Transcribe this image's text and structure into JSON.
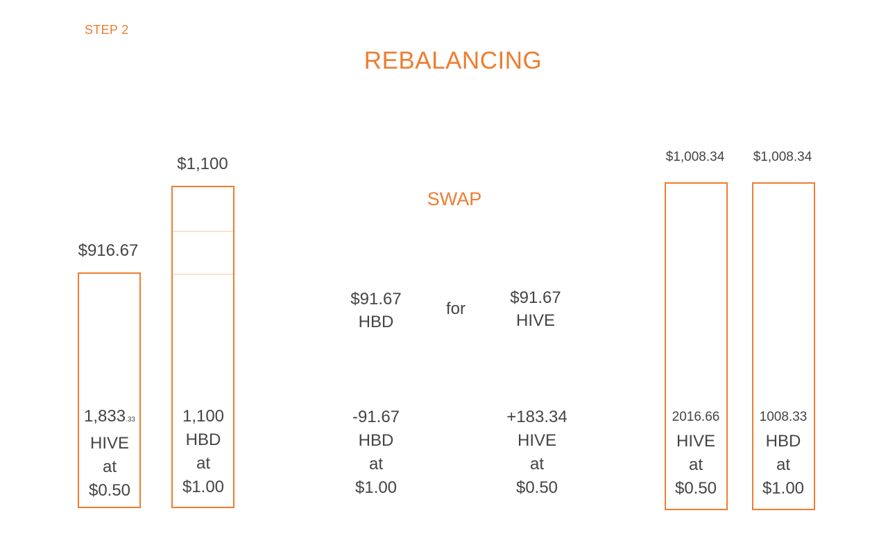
{
  "header": {
    "step": "STEP 2",
    "title": "REBALANCING",
    "swap": "SWAP"
  },
  "colors": {
    "accent": "#ED7D31",
    "text": "#444444"
  },
  "before": {
    "hive": {
      "total": "$916.67",
      "amount": "1,833",
      "amount_decimals": ".33",
      "token": "HIVE",
      "at": "at",
      "price": "$0.50"
    },
    "hbd": {
      "total": "$1,100",
      "amount": "1,100",
      "token": "HBD",
      "at": "at",
      "price": "$1.00"
    }
  },
  "swap_offer": {
    "give_amount": "$91.67",
    "give_token": "HBD",
    "connector": "for",
    "get_amount": "$91.67",
    "get_token": "HIVE"
  },
  "changes": {
    "hbd": {
      "delta": "-91.67",
      "token": "HBD",
      "at": "at",
      "price": "$1.00"
    },
    "hive": {
      "delta": "+183.34",
      "token": "HIVE",
      "at": "at",
      "price": "$0.50"
    }
  },
  "after": {
    "hive": {
      "total": "$1,008.34",
      "amount": "2016.66",
      "token": "HIVE",
      "at": "at",
      "price": "$0.50"
    },
    "hbd": {
      "total": "$1,008.34",
      "amount": "1008.33",
      "token": "HBD",
      "at": "at",
      "price": "$1.00"
    }
  }
}
